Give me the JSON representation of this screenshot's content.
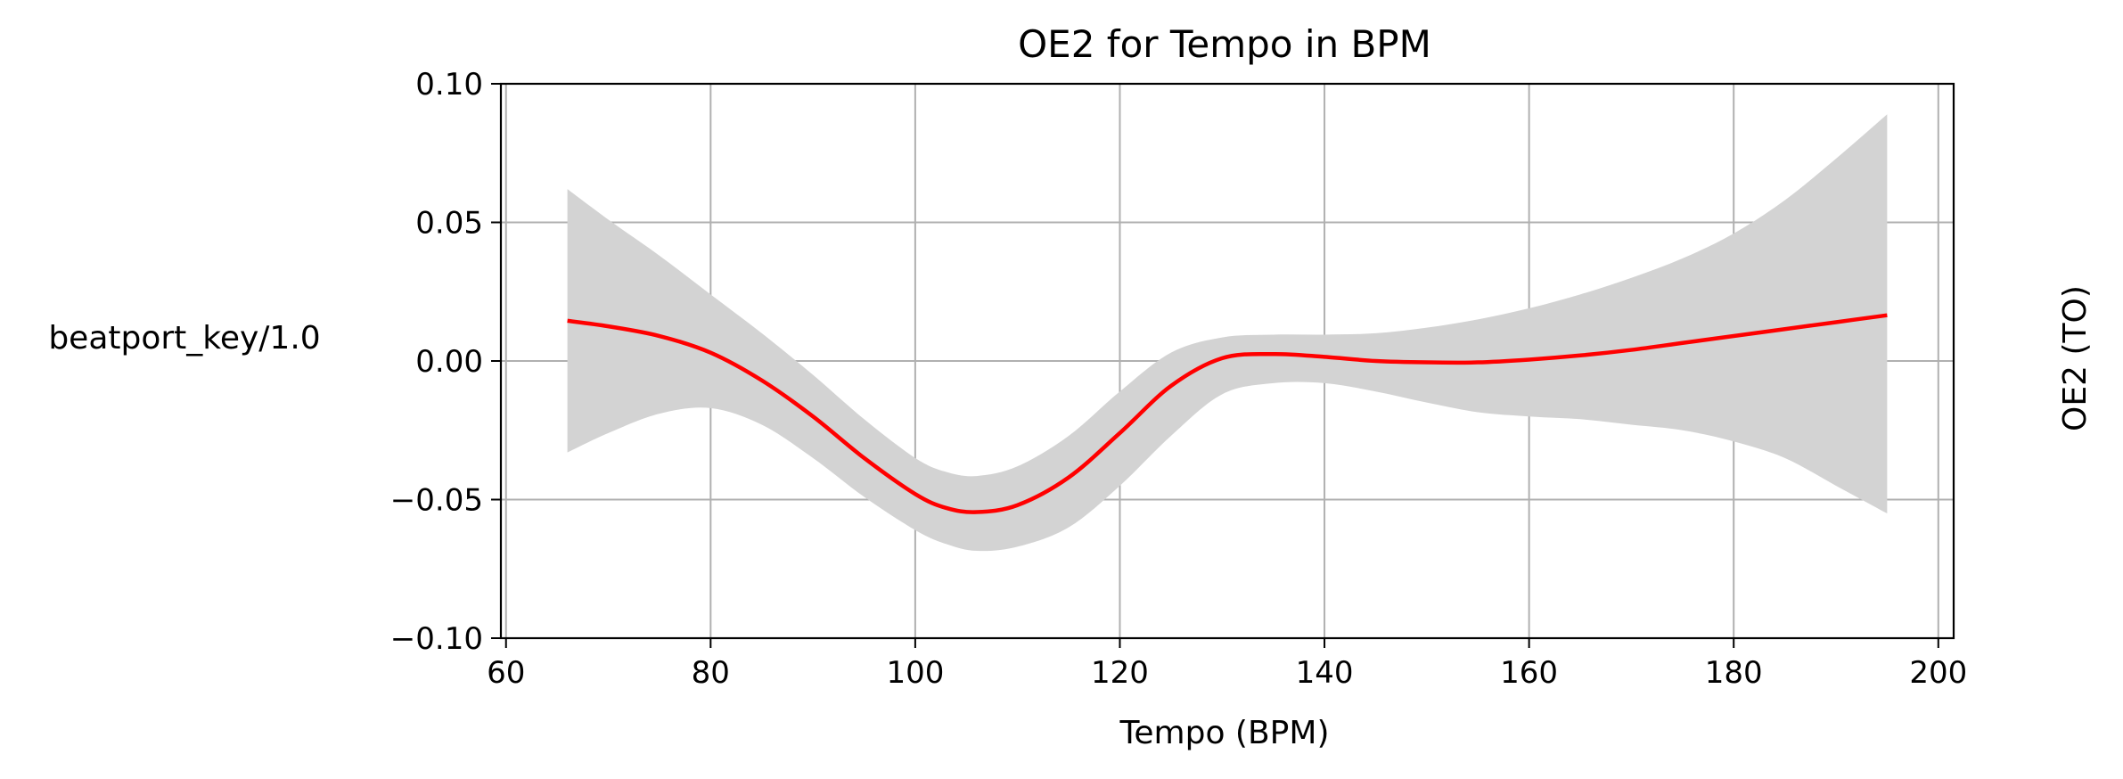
{
  "chart_data": {
    "type": "line",
    "title": "OE2 for Tempo in BPM",
    "xlabel": "Tempo (BPM)",
    "ylabel": "beatport_key/1.0",
    "ylabel_right": "OE2 (TO)",
    "xlim": [
      59.5,
      201.5
    ],
    "ylim": [
      -0.1,
      0.1
    ],
    "grid": true,
    "x_ticks": [
      60,
      80,
      100,
      120,
      140,
      160,
      180,
      200
    ],
    "x_tick_labels": [
      "60",
      "80",
      "100",
      "120",
      "140",
      "160",
      "180",
      "200"
    ],
    "y_ticks": [
      -0.1,
      -0.05,
      0.0,
      0.05,
      0.1
    ],
    "y_tick_labels": [
      "−0.10",
      "−0.05",
      "0.00",
      "0.05",
      "0.10"
    ],
    "colors": {
      "line": "#ff0000",
      "band": "#d3d3d3",
      "grid": "#b0b0b0"
    },
    "series": [
      {
        "x": [
          66,
          70,
          75,
          80,
          85,
          90,
          95,
          100,
          103,
          106,
          110,
          115,
          120,
          125,
          130,
          135,
          140,
          145,
          150,
          155,
          160,
          165,
          170,
          175,
          180,
          185,
          190,
          195
        ],
        "y": [
          0.0145,
          0.0125,
          0.009,
          0.003,
          -0.007,
          -0.02,
          -0.035,
          -0.048,
          -0.053,
          -0.0545,
          -0.052,
          -0.042,
          -0.026,
          -0.009,
          0.001,
          0.0025,
          0.0015,
          0.0,
          -0.0005,
          -0.0005,
          0.0005,
          0.002,
          0.004,
          0.0065,
          0.009,
          0.0115,
          0.014,
          0.0165
        ],
        "lower": [
          -0.033,
          -0.026,
          -0.019,
          -0.017,
          -0.023,
          -0.035,
          -0.049,
          -0.061,
          -0.066,
          -0.0685,
          -0.067,
          -0.06,
          -0.045,
          -0.027,
          -0.012,
          -0.008,
          -0.008,
          -0.011,
          -0.015,
          -0.0185,
          -0.02,
          -0.021,
          -0.023,
          -0.025,
          -0.029,
          -0.035,
          -0.045,
          -0.055
        ],
        "upper": [
          0.062,
          0.051,
          0.038,
          0.024,
          0.01,
          -0.005,
          -0.021,
          -0.035,
          -0.04,
          -0.0415,
          -0.038,
          -0.027,
          -0.011,
          0.003,
          0.0085,
          0.0095,
          0.0095,
          0.01,
          0.012,
          0.015,
          0.019,
          0.024,
          0.03,
          0.037,
          0.046,
          0.058,
          0.073,
          0.089
        ]
      }
    ]
  }
}
